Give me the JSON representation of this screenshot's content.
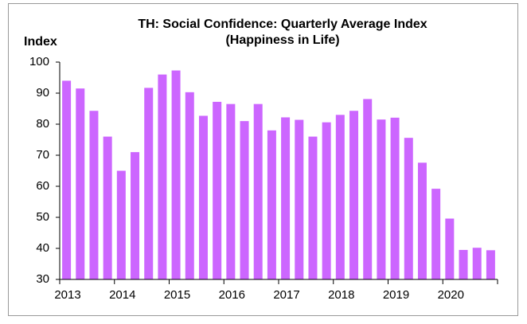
{
  "chart_data": {
    "type": "bar",
    "title": "TH: Social Confidence: Quarterly Average Index",
    "subtitle": "(Happiness in Life)",
    "y_label": "Index",
    "categories": [
      "2013",
      null,
      null,
      null,
      "2014",
      null,
      null,
      null,
      "2015",
      null,
      null,
      null,
      "2016",
      null,
      null,
      null,
      "2017",
      null,
      null,
      null,
      "2018",
      null,
      null,
      null,
      "2019",
      null,
      null,
      null,
      "2020",
      null,
      null,
      null
    ],
    "values": [
      94,
      91.5,
      84.3,
      76,
      65,
      71,
      91.7,
      96,
      97.3,
      90.3,
      82.7,
      87.2,
      86.5,
      81,
      86.5,
      78,
      82.2,
      81.4,
      76,
      80.6,
      83,
      84.3,
      88.1,
      81.5,
      82.1,
      75.6,
      67.6,
      59.2,
      49.6,
      39.5,
      40.2,
      39.4
    ],
    "color": "#cc66ff",
    "ylim": [
      30,
      100
    ],
    "yticks": [
      30,
      40,
      50,
      60,
      70,
      80,
      90,
      100
    ],
    "grid": false
  }
}
